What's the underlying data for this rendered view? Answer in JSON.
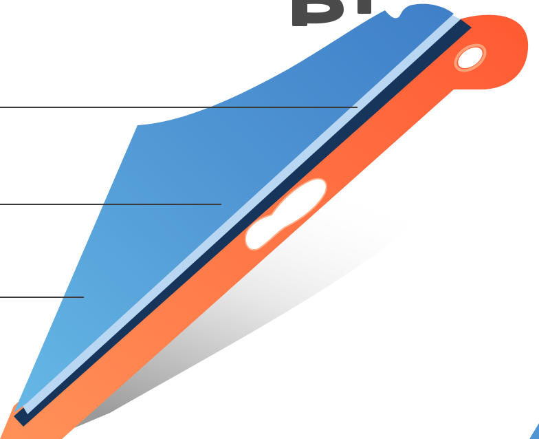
{
  "colors": {
    "background": "#ffffff",
    "blue_light": "#66b8e6",
    "blue_mid": "#4f95d3",
    "blue_dark_top": "#3f7fc8",
    "light_stripe": "#b9d6f2",
    "navy_stripe": "#17355a",
    "orange_light": "#ff9159",
    "orange_dark": "#ff5a33",
    "leader_line": "#3a3a3a",
    "title_fragment": "#4a4a4a",
    "shadow_dark": "#9a9a9a"
  },
  "diagram": {
    "type": "layered-cross-section",
    "layers": [
      {
        "id": "outer-blue-layer",
        "color": "#4f95d3"
      },
      {
        "id": "light-blue-stripe",
        "color": "#b9d6f2"
      },
      {
        "id": "navy-stripe",
        "color": "#17355a"
      },
      {
        "id": "orange-base-layer",
        "color": "#ff6a3d"
      }
    ],
    "leader_lines": [
      {
        "id": "leader-line-top",
        "target": "navy-stripe"
      },
      {
        "id": "leader-line-middle",
        "target": "light-blue-stripe"
      },
      {
        "id": "leader-line-bottom",
        "target": "outer-blue-layer"
      }
    ]
  }
}
